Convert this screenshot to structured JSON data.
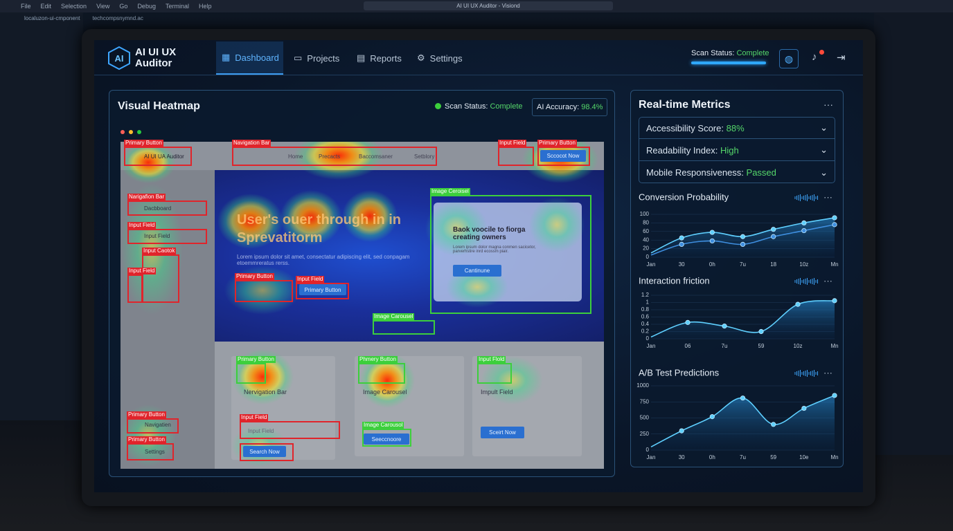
{
  "ide": {
    "menu": [
      "File",
      "Edit",
      "Selection",
      "View",
      "Go",
      "Debug",
      "Terminal",
      "Help"
    ],
    "window_title": "AI UI UX Auditor - Visiond",
    "tabs": [
      "localuzon-ui-cmponent",
      "techcompsnymnd.ac"
    ]
  },
  "header": {
    "logo_mark": "AI",
    "app_name": "AI UI UX Auditor",
    "nav": [
      "Dashboard",
      "Projects",
      "Reports",
      "Settings"
    ],
    "active_nav": 0,
    "scan_status_label": "Scan Status:",
    "scan_status_value": "Complete"
  },
  "heatmap": {
    "title": "Visual Heatmap",
    "scan_status_label": "Scan Status:",
    "scan_status_value": "Complete",
    "accuracy_label": "AI Accuracy:",
    "accuracy_value": "98.4%",
    "mock": {
      "logo": "AI UI UA Auditor",
      "nav_items": [
        "Home",
        "Precacts",
        "Baccomsaner",
        "Setblory"
      ],
      "top_button": "Sccocot Now",
      "sidebar_items": [
        "Dacbboard",
        "Input Field"
      ],
      "sidebar_bottom": [
        "Navigatien",
        "Settings"
      ],
      "hero_title": "User's ouer through in in Sprevatitorm",
      "hero_text": "Lorem ipsum dolor sit amet, consectatur adipiscing elit, sed conpagam etoemmreratus rerss.",
      "hero_button": "Primary Button",
      "carousel_title": "Baok voocile to fiorga creating owners",
      "carousel_text": "Lorem ipsum dolor magna conmen sacicetor, parverhstire inrd ecossm piair.",
      "carousel_button": "Cantinune",
      "cards": [
        "Nervigation Bar",
        "Image Carousel",
        "Impult Field"
      ],
      "input": "Input Field",
      "search": "Search Now",
      "card2_button": "Seeccnoore",
      "card3_button": "Sceirt Now"
    },
    "annotations": [
      {
        "label": "Primary Button",
        "color": "#e0242b"
      },
      {
        "label": "Navigation Bar",
        "color": "#e0242b"
      },
      {
        "label": "Input Field",
        "color": "#e0242b"
      },
      {
        "label": "Primary Button",
        "color": "#e0242b"
      },
      {
        "label": "Narigafion Bar",
        "color": "#e0242b"
      },
      {
        "label": "Input Field",
        "color": "#e0242b"
      },
      {
        "label": "Input Caotok",
        "color": "#e0242b"
      },
      {
        "label": "Input Field",
        "color": "#e0242b"
      },
      {
        "label": "Primary Button",
        "color": "#e0242b"
      },
      {
        "label": "Input Field",
        "color": "#e0242b"
      },
      {
        "label": "Image Ceroisel",
        "color": "#3ccf3c"
      },
      {
        "label": "Image Carousel",
        "color": "#3ccf3c"
      },
      {
        "label": "Primary Button",
        "color": "#3ccf3c"
      },
      {
        "label": "Phmery Button",
        "color": "#3ccf3c"
      },
      {
        "label": "Input Flold",
        "color": "#3ccf3c"
      },
      {
        "label": "Input Field",
        "color": "#e0242b"
      },
      {
        "label": "Image Carousol",
        "color": "#3ccf3c"
      },
      {
        "label": "Primary Button",
        "color": "#e0242b"
      },
      {
        "label": "Primary Button",
        "color": "#e0242b"
      }
    ]
  },
  "metrics": {
    "title": "Real-time Metrics",
    "items": [
      {
        "label": "Accessibility Score:",
        "value": "88%"
      },
      {
        "label": "Readability Index:",
        "value": "High"
      },
      {
        "label": "Mobile Responsiveness:",
        "value": "Passed"
      }
    ],
    "charts": [
      {
        "type": "area",
        "title": "Conversion Probability",
        "categories": [
          "Jan",
          "30",
          "0h",
          "7u",
          "18",
          "10z",
          "Mn"
        ],
        "series": [
          {
            "color": "#5fd0ff",
            "values": [
              10,
              45,
              58,
              48,
              65,
              80,
              92
            ]
          },
          {
            "color": "#3f8fe0",
            "values": [
              5,
              30,
              38,
              30,
              48,
              62,
              76
            ]
          }
        ],
        "ylim": [
          0,
          100
        ],
        "yticks": [
          0,
          20,
          40,
          60,
          80,
          100
        ]
      },
      {
        "type": "area",
        "title": "Interaction friction",
        "categories": [
          "Jan",
          "06",
          "7u",
          "59",
          "10z",
          "Mn"
        ],
        "series": [
          {
            "color": "#5fd0ff",
            "values": [
              0.05,
              0.45,
              0.35,
              0.2,
              0.95,
              1.05
            ]
          }
        ],
        "ylim": [
          0,
          1.2
        ],
        "yticks": [
          0,
          0.2,
          0.4,
          0.6,
          0.8,
          1,
          1.2
        ]
      },
      {
        "type": "area",
        "title": "A/B Test Predictions",
        "categories": [
          "Jan",
          "30",
          "0h",
          "7u",
          "59",
          "10e",
          "Mn"
        ],
        "series": [
          {
            "color": "#5fd0ff",
            "values": [
              50,
              300,
              520,
              810,
              400,
              650,
              850
            ]
          }
        ],
        "ylim": [
          0,
          1000
        ],
        "yticks": [
          0,
          250,
          500,
          750,
          1000
        ]
      }
    ]
  }
}
